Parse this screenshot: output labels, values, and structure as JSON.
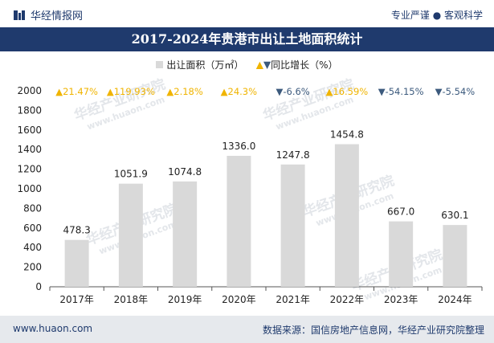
{
  "header": {
    "brand": "华经情报网",
    "tagline": "专业严谨 ● 客观科学"
  },
  "watermark": {
    "text_cn": "华经产业研究院",
    "text_en": "www.huaon.com"
  },
  "footer": {
    "website": "www.huaon.com",
    "source": "数据来源：国信房地产信息网，华经产业研究院整理"
  },
  "colors": {
    "title_bg": "#1f3a6d",
    "bar": "#d9d9d9",
    "up": "#f0b400",
    "down": "#3c5a7d"
  },
  "chart_data": {
    "type": "bar",
    "title": "2017-2024年贵港市出让土地面积统计",
    "categories": [
      "2017年",
      "2018年",
      "2019年",
      "2020年",
      "2021年",
      "2022年",
      "2023年",
      "2024年"
    ],
    "series": [
      {
        "name": "出让面积（万㎡）",
        "values": [
          478.3,
          1051.9,
          1074.8,
          1336.0,
          1247.8,
          1454.8,
          667.0,
          630.1
        ],
        "labels": [
          "478.3",
          "1051.9",
          "1074.8",
          "1336.0",
          "1247.8",
          "1454.8",
          "667.0",
          "630.1"
        ]
      }
    ],
    "growth": {
      "name": "同比增长（%）",
      "values": [
        21.47,
        119.93,
        2.18,
        24.3,
        -6.6,
        16.59,
        -54.15,
        -5.54
      ],
      "labels": [
        "▲21.47%",
        "▲119.93%",
        "▲2.18%",
        "▲24.3%",
        "▼-6.6%",
        "▲16.59%",
        "▼-54.15%",
        "▼-5.54%"
      ]
    },
    "legend": {
      "bar_label": "出让面积（万㎡）",
      "growth_label": "同比增长（%）",
      "up_marker": "▲",
      "down_marker": "▼",
      "box_marker": "■"
    },
    "y_ticks": [
      "0",
      "200",
      "400",
      "600",
      "800",
      "1000",
      "1200",
      "1400",
      "1600",
      "1800",
      "2000"
    ],
    "ylim": [
      0,
      2000
    ],
    "xlabel": "",
    "ylabel": ""
  }
}
